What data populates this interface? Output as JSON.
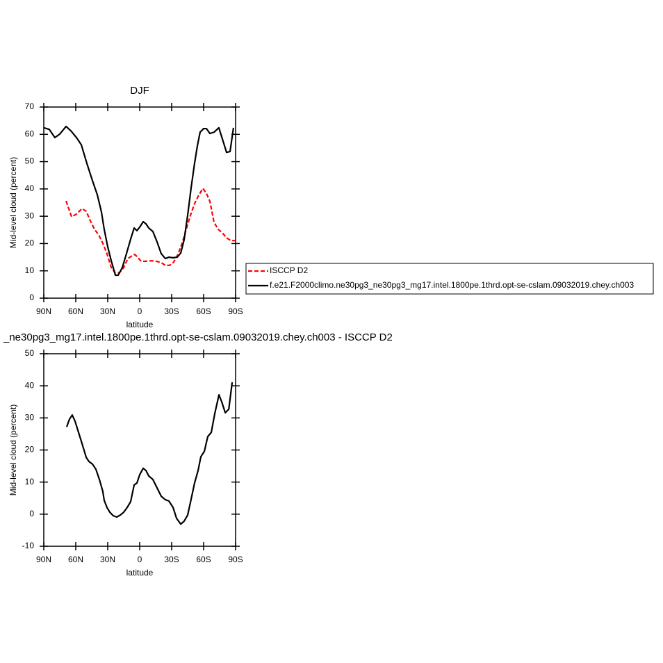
{
  "chart_data": [
    {
      "type": "line",
      "title": "DJF",
      "xlabel": "latitude",
      "ylabel": "Mid-level cloud (percent)",
      "xlim": [
        90,
        -90
      ],
      "xticks": [
        {
          "value": 90,
          "label": "90N"
        },
        {
          "value": 60,
          "label": "60N"
        },
        {
          "value": 30,
          "label": "30N"
        },
        0,
        {
          "value": -30,
          "label": "30S"
        },
        {
          "value": -60,
          "label": "60S"
        },
        {
          "value": -90,
          "label": "90S"
        }
      ],
      "ylim": [
        0,
        70
      ],
      "yticks": [
        0,
        10,
        20,
        30,
        40,
        50,
        60,
        70
      ],
      "series": [
        {
          "name": "ISCCP D2",
          "color": "#ff0000",
          "dashed": true,
          "x": [
            69.1,
            63.9,
            59.3,
            54.1,
            50.2,
            46.3,
            42.4,
            38.5,
            34.6,
            30.7,
            26.7,
            22.8,
            18.9,
            15,
            11.1,
            7.2,
            4.6,
            2,
            -1.3,
            -5.9,
            -11.1,
            -15.7,
            -20.2,
            -24.1,
            -28,
            -31.9,
            -35.9,
            -39.8,
            -43.7,
            -47.6,
            -51.5,
            -55.4,
            -59.3,
            -62.6,
            -65.9,
            -69.8,
            -73.7,
            -77.6,
            -81.5,
            -85.4,
            -89.3
          ],
          "values": [
            35.6,
            29.8,
            30.8,
            32.8,
            31.8,
            28.3,
            25.2,
            23.2,
            20.1,
            16.3,
            11.2,
            9.2,
            9.4,
            11.2,
            14.5,
            15.5,
            16,
            15,
            13.5,
            13.5,
            13.7,
            13.5,
            13,
            12,
            12,
            13.2,
            16,
            20.1,
            25.2,
            30.3,
            34.6,
            37.7,
            40.2,
            38.4,
            35.4,
            27.7,
            25.2,
            23.9,
            22.1,
            21.1,
            21.1
          ]
        },
        {
          "name": "f.e21.F2000climo.ne30pg3_ne30pg3_mg17.intel.1800pe.1thrd.opt-se-cslam.09032019.chey.ch003",
          "color": "#000000",
          "dashed": false,
          "x": [
            90,
            84.8,
            79.6,
            75,
            69.1,
            64.6,
            59.3,
            54.8,
            49.6,
            44.3,
            39.8,
            35.9,
            33.3,
            30,
            26.7,
            22.8,
            20.2,
            16.3,
            12.4,
            8.5,
            5.2,
            2.6,
            0,
            -3.3,
            -5.9,
            -8.5,
            -12.4,
            -16.3,
            -20.2,
            -24.1,
            -27.4,
            -31.3,
            -35.2,
            -38.5,
            -41.7,
            -45,
            -48.3,
            -51.5,
            -54.1,
            -56.7,
            -60,
            -62.6,
            -65.9,
            -69.8,
            -74.3,
            -77.6,
            -81.5,
            -84.8,
            -88
          ],
          "values": [
            62.4,
            61.8,
            58.8,
            60.1,
            62.9,
            61.3,
            58.8,
            56.2,
            49.4,
            43,
            37.9,
            31.6,
            25.2,
            18.8,
            13.7,
            8.4,
            8.4,
            11.2,
            16.3,
            21.6,
            25.7,
            24.7,
            26,
            28,
            27.2,
            25.7,
            24.4,
            20.6,
            16.3,
            14.5,
            15,
            14.8,
            15,
            16.5,
            21.4,
            30.3,
            40.5,
            49.4,
            55.7,
            60.8,
            62.1,
            62.1,
            60.3,
            60.8,
            62.4,
            58.3,
            53.4,
            53.7,
            62.4
          ]
        }
      ]
    },
    {
      "type": "line",
      "title": "_ne30pg3_mg17.intel.1800pe.1thrd.opt-se-cslam.09032019.chey.ch003 - ISCCP D2",
      "xlabel": "latitude",
      "ylabel": "Mid-level cloud (percent)",
      "xlim": [
        90,
        -90
      ],
      "xticks": [
        {
          "value": 90,
          "label": "90N"
        },
        {
          "value": 60,
          "label": "60N"
        },
        {
          "value": 30,
          "label": "30N"
        },
        0,
        {
          "value": -30,
          "label": "30S"
        },
        {
          "value": -60,
          "label": "60S"
        },
        {
          "value": -90,
          "label": "90S"
        }
      ],
      "ylim": [
        -10,
        50
      ],
      "yticks": [
        -10,
        0,
        10,
        20,
        30,
        40,
        50
      ],
      "series": [
        {
          "color": "#000000",
          "dashed": false,
          "x": [
            68.5,
            65.9,
            63.3,
            60.7,
            57.4,
            54.1,
            50.2,
            47.6,
            44.3,
            41.1,
            37.8,
            34.6,
            33.3,
            30.7,
            28,
            24.8,
            21.5,
            18.3,
            15,
            11.7,
            8.5,
            5.2,
            2.6,
            0,
            -3.3,
            -5.9,
            -8.5,
            -12.4,
            -16.3,
            -20.2,
            -24.1,
            -27.4,
            -31.3,
            -34.6,
            -38.5,
            -41.7,
            -45,
            -48.3,
            -51.5,
            -54.8,
            -57.4,
            -60.7,
            -63.9,
            -67.2,
            -70.5,
            -74.4,
            -77,
            -80.3,
            -83.6,
            -86.8
          ],
          "values": [
            27.2,
            29.6,
            30.9,
            29,
            25.5,
            22,
            17.7,
            16.4,
            15.6,
            14,
            10.8,
            7.1,
            4.3,
            2.1,
            0.6,
            -0.5,
            -0.9,
            -0.3,
            0.6,
            2.1,
            3.9,
            9.1,
            9.7,
            12.3,
            14.3,
            13.6,
            11.9,
            10.8,
            8.2,
            5.6,
            4.5,
            4.1,
            2.1,
            -1.3,
            -3.1,
            -2.2,
            -0.3,
            4.7,
            9.7,
            13.6,
            17.9,
            19.6,
            24.2,
            25.5,
            31.4,
            37.2,
            35,
            31.6,
            32.7,
            41.1
          ]
        }
      ]
    }
  ]
}
